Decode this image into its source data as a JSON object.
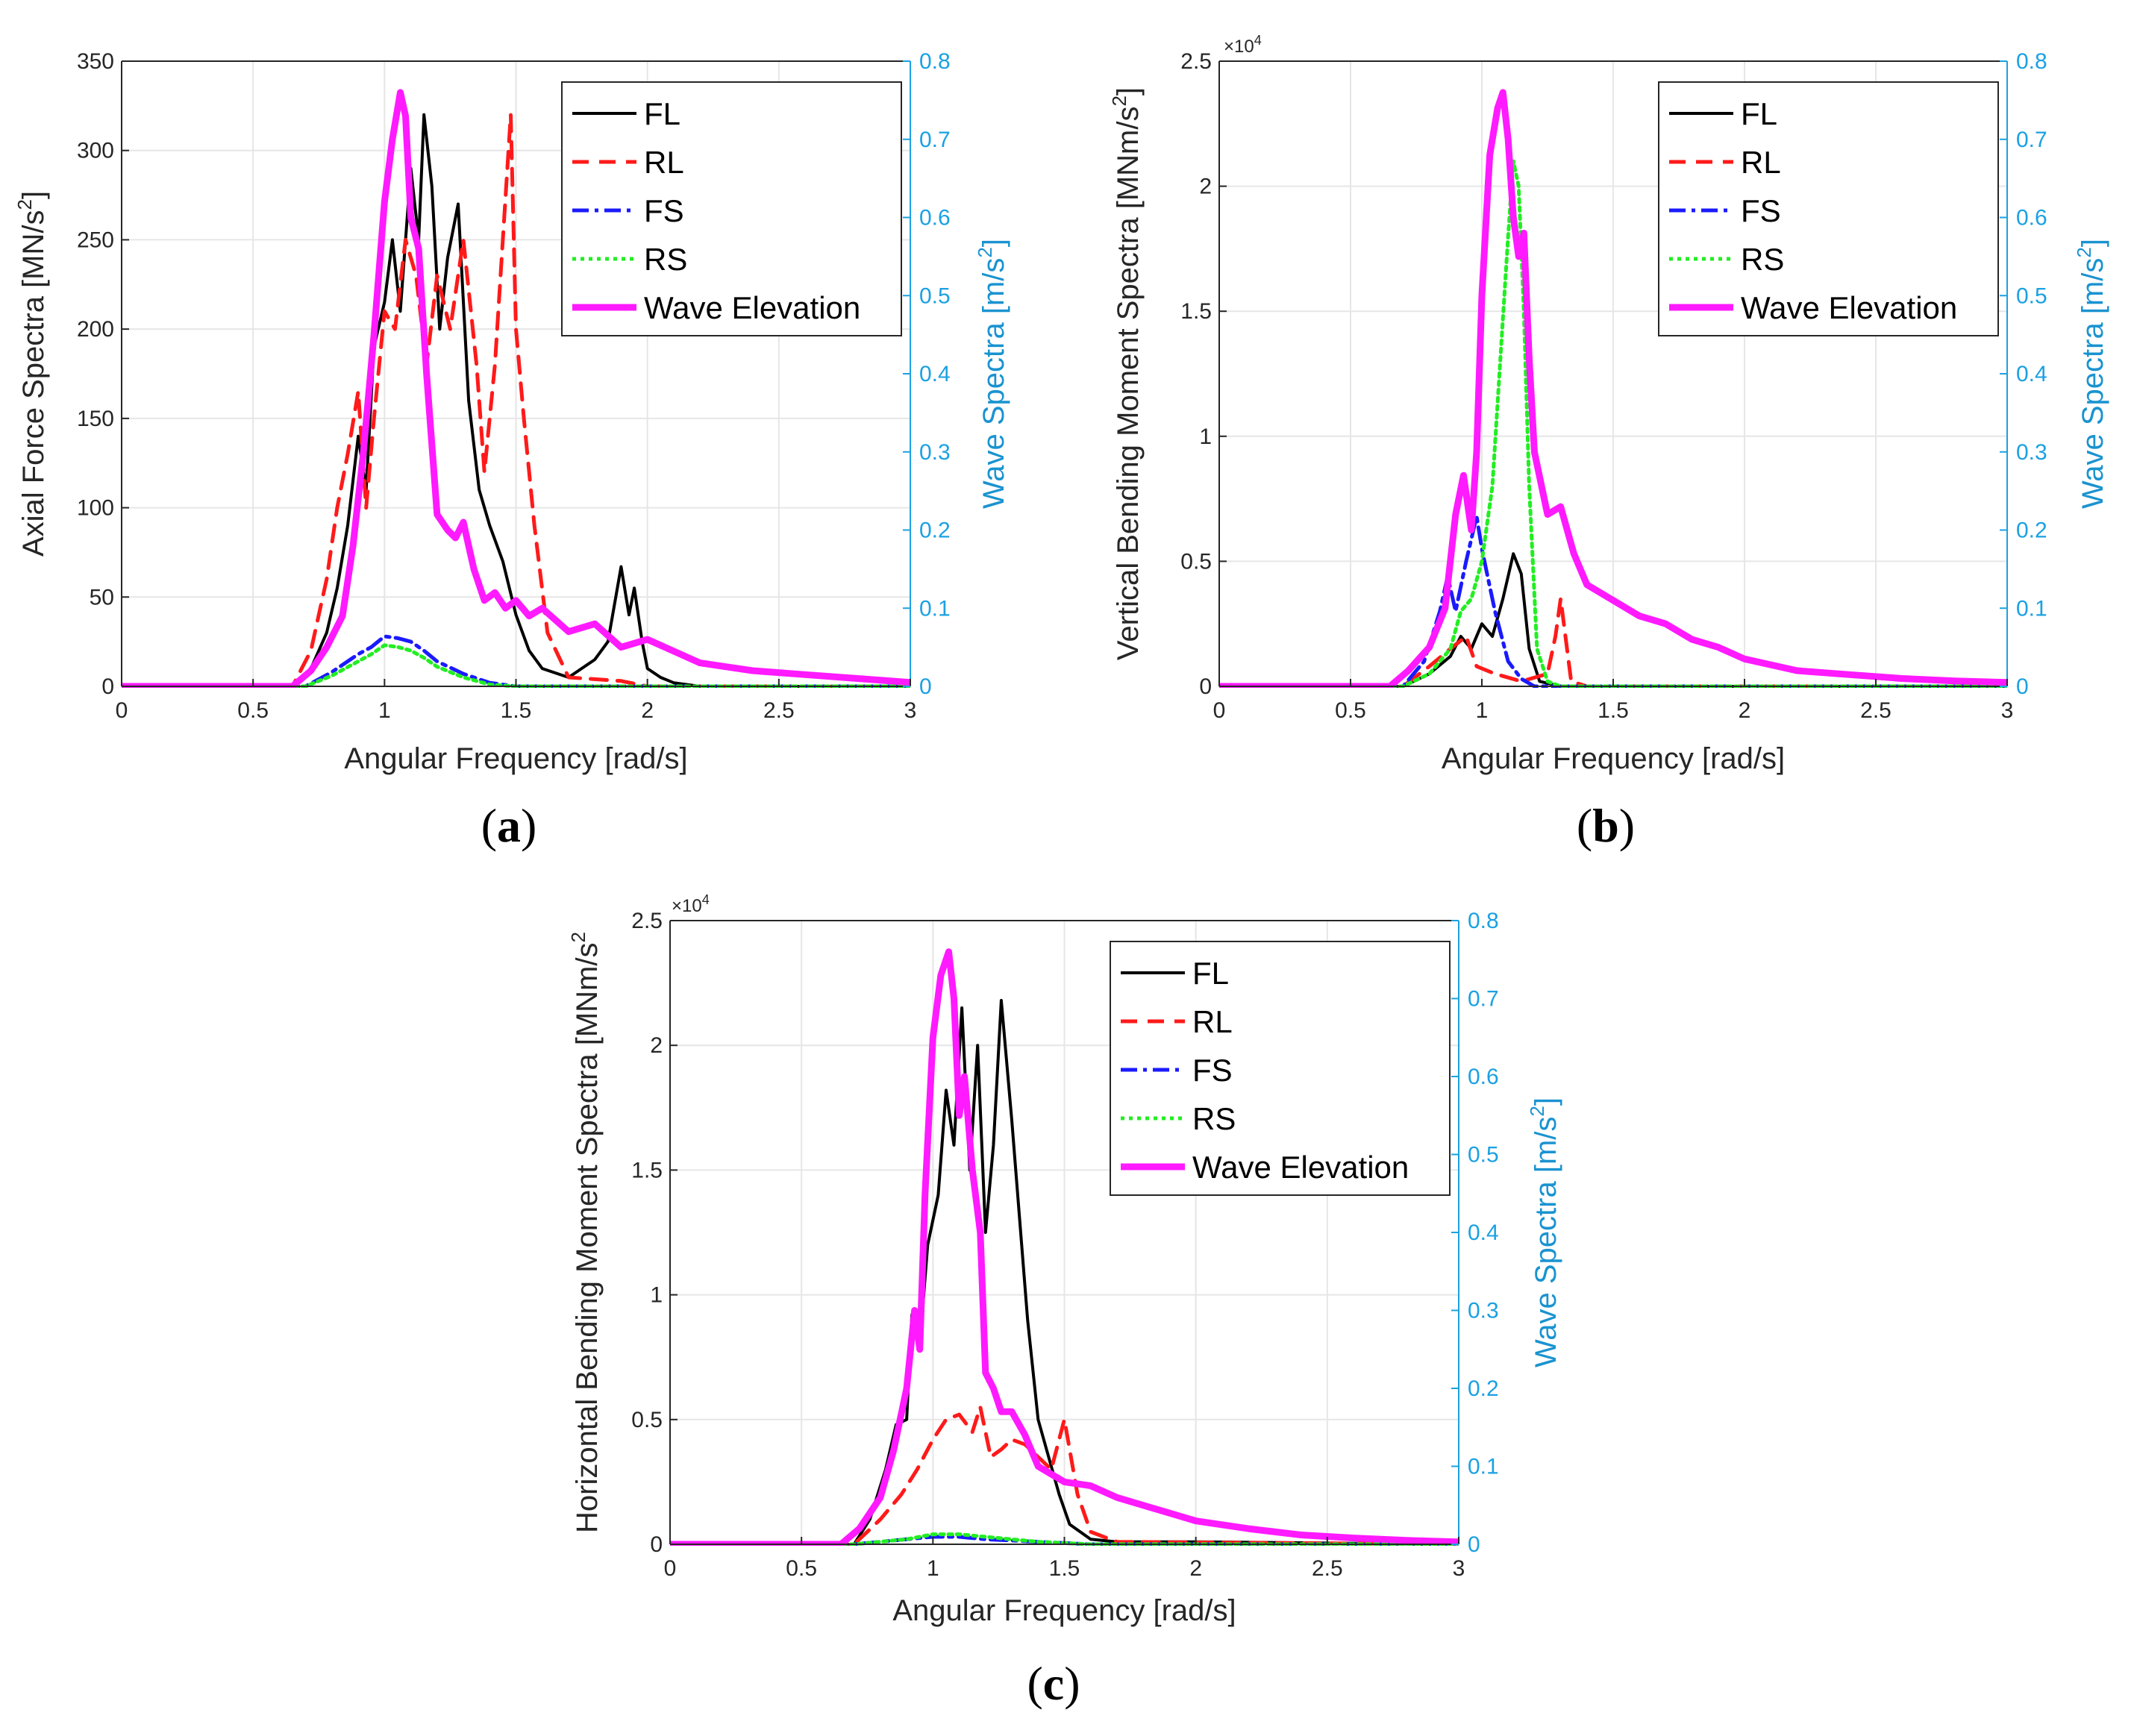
{
  "figure": {
    "panels": [
      {
        "id": "a",
        "label_open": "(",
        "label_letter": "a",
        "label_close": ")"
      },
      {
        "id": "b",
        "label_open": "(",
        "label_letter": "b",
        "label_close": ")"
      },
      {
        "id": "c",
        "label_open": "(",
        "label_letter": "c",
        "label_close": ")"
      }
    ]
  },
  "colors": {
    "FL": "#000000",
    "RL": "#ff1a1a",
    "FS": "#1a1aff",
    "RS": "#22ee22",
    "Wave Elevation": "#ff1aff",
    "right_axis": "#1ba1e2",
    "grid": "#e6e6e6",
    "axis": "#262626"
  },
  "chart_data": [
    {
      "type": "line",
      "panel": "a",
      "xlabel": "Angular Frequency [rad/s]",
      "ylabel": "Axial Force Spectra [MN/s",
      "ylabel_sup": "2",
      "ylabel_end": "]",
      "y2label": "Wave Spectra [m/s",
      "y2label_sup": "2",
      "y2label_end": "]",
      "xlim": [
        0,
        3
      ],
      "ylim": [
        0,
        350
      ],
      "y2lim": [
        0,
        0.8
      ],
      "xticks": [
        "0",
        "0.5",
        "1",
        "1.5",
        "2",
        "2.5",
        "3"
      ],
      "yticks": [
        "0",
        "50",
        "100",
        "150",
        "200",
        "250",
        "300",
        "350"
      ],
      "y2ticks": [
        "0",
        "0.1",
        "0.2",
        "0.3",
        "0.4",
        "0.5",
        "0.6",
        "0.7",
        "0.8"
      ],
      "multiplier": "",
      "legend": [
        "FL",
        "RL",
        "FS",
        "RS",
        "Wave Elevation"
      ],
      "legend_position": "top-right",
      "grid": true,
      "series": [
        {
          "name": "FL",
          "x": [
            0,
            0.65,
            0.72,
            0.78,
            0.82,
            0.86,
            0.9,
            0.93,
            0.96,
            1.0,
            1.03,
            1.06,
            1.1,
            1.13,
            1.15,
            1.18,
            1.21,
            1.24,
            1.28,
            1.32,
            1.36,
            1.4,
            1.45,
            1.5,
            1.55,
            1.6,
            1.7,
            1.8,
            1.85,
            1.9,
            1.93,
            1.95,
            1.98,
            2.0,
            2.05,
            2.1,
            2.2,
            3.0
          ],
          "values": [
            0,
            0,
            10,
            30,
            55,
            90,
            140,
            110,
            190,
            215,
            250,
            210,
            290,
            250,
            320,
            280,
            200,
            240,
            270,
            160,
            110,
            90,
            70,
            40,
            20,
            10,
            5,
            15,
            25,
            67,
            40,
            55,
            25,
            10,
            5,
            2,
            0,
            0
          ]
        },
        {
          "name": "RL",
          "x": [
            0,
            0.65,
            0.72,
            0.78,
            0.82,
            0.86,
            0.9,
            0.93,
            0.96,
            1.0,
            1.04,
            1.08,
            1.12,
            1.16,
            1.2,
            1.25,
            1.3,
            1.35,
            1.38,
            1.42,
            1.45,
            1.48,
            1.5,
            1.53,
            1.57,
            1.62,
            1.7,
            1.9,
            2.0,
            3.0
          ],
          "values": [
            0,
            0,
            20,
            60,
            100,
            130,
            165,
            100,
            150,
            210,
            200,
            250,
            230,
            180,
            230,
            200,
            250,
            180,
            120,
            180,
            250,
            320,
            200,
            150,
            90,
            30,
            5,
            3,
            0,
            0
          ]
        },
        {
          "name": "FS",
          "x": [
            0,
            0.7,
            0.8,
            0.9,
            0.95,
            1.0,
            1.05,
            1.1,
            1.15,
            1.2,
            1.3,
            1.4,
            1.5,
            3.0
          ],
          "values": [
            0,
            0,
            8,
            18,
            22,
            28,
            27,
            25,
            20,
            14,
            7,
            2,
            0,
            0
          ]
        },
        {
          "name": "RS",
          "x": [
            0,
            0.7,
            0.8,
            0.9,
            0.95,
            1.0,
            1.05,
            1.1,
            1.15,
            1.2,
            1.3,
            1.4,
            1.5,
            3.0
          ],
          "values": [
            0,
            0,
            6,
            14,
            18,
            23,
            22,
            20,
            16,
            11,
            5,
            1,
            0,
            0
          ]
        },
        {
          "name": "Wave Elevation",
          "axis": "right",
          "x": [
            0,
            0.65,
            0.72,
            0.78,
            0.84,
            0.88,
            0.92,
            0.96,
            1.0,
            1.03,
            1.06,
            1.08,
            1.1,
            1.13,
            1.16,
            1.2,
            1.24,
            1.27,
            1.3,
            1.34,
            1.38,
            1.42,
            1.46,
            1.5,
            1.55,
            1.6,
            1.7,
            1.8,
            1.9,
            2.0,
            2.2,
            2.4,
            2.6,
            2.8,
            3.0
          ],
          "values": [
            0,
            0,
            0.02,
            0.05,
            0.09,
            0.18,
            0.3,
            0.45,
            0.62,
            0.7,
            0.76,
            0.73,
            0.6,
            0.56,
            0.4,
            0.22,
            0.2,
            0.19,
            0.21,
            0.15,
            0.11,
            0.12,
            0.1,
            0.11,
            0.09,
            0.1,
            0.07,
            0.08,
            0.05,
            0.06,
            0.03,
            0.02,
            0.015,
            0.01,
            0.005
          ]
        }
      ]
    },
    {
      "type": "line",
      "panel": "b",
      "xlabel": "Angular Frequency [rad/s]",
      "ylabel": "Vertical Bending Moment Spectra [MNm/s",
      "ylabel_sup": "2",
      "ylabel_end": "]",
      "y2label": "Wave Spectra [m/s",
      "y2label_sup": "2",
      "y2label_end": "]",
      "xlim": [
        0,
        3
      ],
      "ylim": [
        0,
        2.5
      ],
      "y2lim": [
        0,
        0.8
      ],
      "xticks": [
        "0",
        "0.5",
        "1",
        "1.5",
        "2",
        "2.5",
        "3"
      ],
      "yticks": [
        "0",
        "0.5",
        "1",
        "1.5",
        "2",
        "2.5"
      ],
      "y2ticks": [
        "0",
        "0.1",
        "0.2",
        "0.3",
        "0.4",
        "0.5",
        "0.6",
        "0.7",
        "0.8"
      ],
      "multiplier": "×10",
      "multiplier_exp": "4",
      "legend": [
        "FL",
        "RL",
        "FS",
        "RS",
        "Wave Elevation"
      ],
      "legend_position": "top-right",
      "grid": true,
      "series": [
        {
          "name": "FL",
          "x": [
            0,
            0.7,
            0.8,
            0.88,
            0.92,
            0.96,
            1.0,
            1.04,
            1.08,
            1.12,
            1.15,
            1.18,
            1.22,
            1.3,
            3.0
          ],
          "values": [
            0,
            0,
            0.05,
            0.12,
            0.2,
            0.15,
            0.25,
            0.2,
            0.35,
            0.53,
            0.45,
            0.15,
            0.02,
            0,
            0
          ]
        },
        {
          "name": "RL",
          "x": [
            0,
            0.7,
            0.8,
            0.88,
            0.94,
            0.98,
            1.05,
            1.15,
            1.25,
            1.28,
            1.3,
            1.34,
            1.4,
            3.0
          ],
          "values": [
            0,
            0,
            0.08,
            0.15,
            0.2,
            0.08,
            0.05,
            0.02,
            0.05,
            0.2,
            0.35,
            0.02,
            0,
            0
          ]
        },
        {
          "name": "FS",
          "x": [
            0,
            0.7,
            0.78,
            0.84,
            0.87,
            0.9,
            0.94,
            0.98,
            1.0,
            1.02,
            1.05,
            1.1,
            1.15,
            1.2,
            3.0
          ],
          "values": [
            0,
            0,
            0.1,
            0.3,
            0.44,
            0.3,
            0.5,
            0.68,
            0.55,
            0.45,
            0.3,
            0.1,
            0.03,
            0,
            0
          ]
        },
        {
          "name": "RS",
          "x": [
            0,
            0.7,
            0.8,
            0.88,
            0.92,
            0.96,
            1.0,
            1.04,
            1.07,
            1.1,
            1.12,
            1.14,
            1.16,
            1.18,
            1.21,
            1.25,
            1.3,
            3.0
          ],
          "values": [
            0,
            0,
            0.05,
            0.15,
            0.3,
            0.35,
            0.5,
            0.8,
            1.3,
            1.8,
            2.1,
            2.0,
            1.5,
            0.8,
            0.15,
            0.02,
            0,
            0
          ]
        },
        {
          "name": "Wave Elevation",
          "axis": "right",
          "x": [
            0,
            0.65,
            0.72,
            0.8,
            0.86,
            0.9,
            0.93,
            0.96,
            0.98,
            1.0,
            1.03,
            1.06,
            1.08,
            1.1,
            1.12,
            1.14,
            1.16,
            1.18,
            1.2,
            1.25,
            1.3,
            1.35,
            1.4,
            1.5,
            1.6,
            1.7,
            1.8,
            1.9,
            2.0,
            2.2,
            2.4,
            2.6,
            2.8,
            3.0
          ],
          "values": [
            0,
            0,
            0.02,
            0.05,
            0.1,
            0.22,
            0.27,
            0.2,
            0.3,
            0.5,
            0.68,
            0.74,
            0.76,
            0.7,
            0.6,
            0.55,
            0.58,
            0.42,
            0.3,
            0.22,
            0.23,
            0.17,
            0.13,
            0.11,
            0.09,
            0.08,
            0.06,
            0.05,
            0.035,
            0.02,
            0.015,
            0.01,
            0.007,
            0.005
          ]
        }
      ]
    },
    {
      "type": "line",
      "panel": "c",
      "xlabel": "Angular Frequency [rad/s]",
      "ylabel": "Horizontal Bending Moment Spectra [MNm/s",
      "ylabel_sup": "2",
      "ylabel_end": "",
      "y2label": "Wave Spectra [m/s",
      "y2label_sup": "2",
      "y2label_end": "]",
      "xlim": [
        0,
        3
      ],
      "ylim": [
        0,
        2.5
      ],
      "y2lim": [
        0,
        0.8
      ],
      "xticks": [
        "0",
        "0.5",
        "1",
        "1.5",
        "2",
        "2.5",
        "3"
      ],
      "yticks": [
        "0",
        "0.5",
        "1",
        "1.5",
        "2",
        "2.5"
      ],
      "y2ticks": [
        "0",
        "0.1",
        "0.2",
        "0.3",
        "0.4",
        "0.5",
        "0.6",
        "0.7",
        "0.8"
      ],
      "multiplier": "×10",
      "multiplier_exp": "4",
      "legend": [
        "FL",
        "RL",
        "FS",
        "RS",
        "Wave Elevation"
      ],
      "legend_position": "top-right",
      "grid": true,
      "series": [
        {
          "name": "FL",
          "x": [
            0,
            0.7,
            0.76,
            0.82,
            0.86,
            0.9,
            0.92,
            0.95,
            0.98,
            1.02,
            1.05,
            1.08,
            1.11,
            1.14,
            1.17,
            1.2,
            1.23,
            1.26,
            1.3,
            1.33,
            1.36,
            1.4,
            1.44,
            1.48,
            1.52,
            1.6,
            1.7,
            2.0,
            3.0
          ],
          "values": [
            0,
            0,
            0.1,
            0.3,
            0.48,
            0.5,
            0.92,
            0.8,
            1.2,
            1.4,
            1.82,
            1.6,
            2.15,
            1.5,
            2.0,
            1.25,
            1.6,
            2.18,
            1.7,
            1.3,
            0.9,
            0.5,
            0.35,
            0.2,
            0.08,
            0.02,
            0.01,
            0.01,
            0
          ]
        },
        {
          "name": "RL",
          "x": [
            0,
            0.7,
            0.8,
            0.88,
            0.94,
            1.0,
            1.05,
            1.1,
            1.15,
            1.18,
            1.22,
            1.26,
            1.3,
            1.35,
            1.4,
            1.45,
            1.5,
            1.55,
            1.6,
            1.7,
            3.0
          ],
          "values": [
            0,
            0,
            0.1,
            0.2,
            0.3,
            0.42,
            0.5,
            0.52,
            0.45,
            0.55,
            0.35,
            0.38,
            0.42,
            0.4,
            0.35,
            0.3,
            0.5,
            0.2,
            0.05,
            0.01,
            0
          ]
        },
        {
          "name": "FS",
          "x": [
            0,
            0.7,
            0.9,
            1.0,
            1.1,
            1.2,
            1.4,
            1.6,
            3.0
          ],
          "values": [
            0,
            0,
            0.02,
            0.03,
            0.03,
            0.02,
            0.01,
            0,
            0
          ]
        },
        {
          "name": "RS",
          "x": [
            0,
            0.7,
            0.9,
            1.0,
            1.1,
            1.2,
            1.4,
            1.6,
            3.0
          ],
          "values": [
            0,
            0,
            0.02,
            0.04,
            0.04,
            0.03,
            0.01,
            0,
            0
          ]
        },
        {
          "name": "Wave Elevation",
          "axis": "right",
          "x": [
            0,
            0.65,
            0.72,
            0.8,
            0.85,
            0.9,
            0.93,
            0.95,
            0.97,
            1.0,
            1.03,
            1.06,
            1.08,
            1.1,
            1.12,
            1.15,
            1.18,
            1.2,
            1.23,
            1.26,
            1.3,
            1.35,
            1.4,
            1.45,
            1.5,
            1.6,
            1.7,
            1.8,
            1.9,
            2.0,
            2.2,
            2.4,
            2.6,
            2.8,
            3.0
          ],
          "values": [
            0,
            0,
            0.02,
            0.06,
            0.12,
            0.2,
            0.3,
            0.25,
            0.45,
            0.65,
            0.73,
            0.76,
            0.7,
            0.55,
            0.6,
            0.48,
            0.4,
            0.22,
            0.2,
            0.17,
            0.17,
            0.14,
            0.1,
            0.09,
            0.08,
            0.075,
            0.06,
            0.05,
            0.04,
            0.03,
            0.02,
            0.012,
            0.008,
            0.005,
            0.003
          ]
        }
      ]
    }
  ]
}
